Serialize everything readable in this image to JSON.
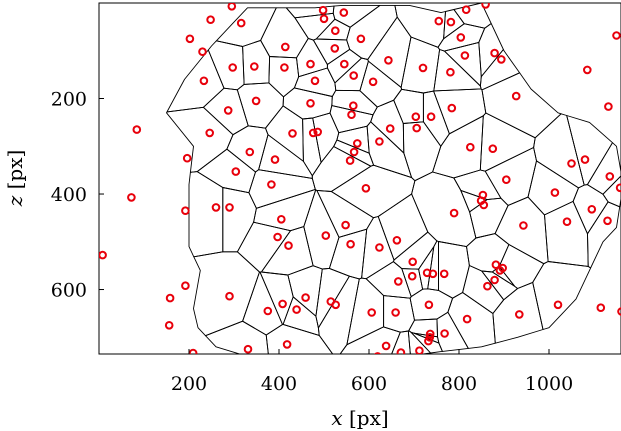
{
  "chart_data": {
    "type": "scatter",
    "xlabel": {
      "var": "x",
      "unit": "[px]"
    },
    "ylabel": {
      "var": "z",
      "unit": "[px]"
    },
    "xlim": [
      0,
      1160
    ],
    "ylim": [
      0,
      735
    ],
    "y_inverted": true,
    "xticks": [
      200,
      400,
      600,
      800,
      1000
    ],
    "yticks": [
      200,
      400,
      600
    ],
    "grid": false,
    "marker_color": "#e8000b",
    "edge_color": "#000000",
    "points": [
      {
        "x": 295,
        "y": 7
      },
      {
        "x": 498,
        "y": 15
      },
      {
        "x": 544,
        "y": 20
      },
      {
        "x": 816,
        "y": 14
      },
      {
        "x": 859,
        "y": 3
      },
      {
        "x": 248,
        "y": 35
      },
      {
        "x": 316,
        "y": 42
      },
      {
        "x": 500,
        "y": 33
      },
      {
        "x": 755,
        "y": 38
      },
      {
        "x": 782,
        "y": 40
      },
      {
        "x": 1150,
        "y": 68
      },
      {
        "x": 202,
        "y": 75
      },
      {
        "x": 525,
        "y": 58
      },
      {
        "x": 582,
        "y": 75
      },
      {
        "x": 804,
        "y": 72
      },
      {
        "x": 414,
        "y": 92
      },
      {
        "x": 230,
        "y": 102
      },
      {
        "x": 524,
        "y": 95
      },
      {
        "x": 813,
        "y": 110
      },
      {
        "x": 879,
        "y": 105
      },
      {
        "x": 894,
        "y": 118
      },
      {
        "x": 1085,
        "y": 140
      },
      {
        "x": 297,
        "y": 135
      },
      {
        "x": 345,
        "y": 133
      },
      {
        "x": 412,
        "y": 135
      },
      {
        "x": 470,
        "y": 128
      },
      {
        "x": 545,
        "y": 128
      },
      {
        "x": 643,
        "y": 120
      },
      {
        "x": 720,
        "y": 136
      },
      {
        "x": 781,
        "y": 145
      },
      {
        "x": 566,
        "y": 152
      },
      {
        "x": 233,
        "y": 163
      },
      {
        "x": 480,
        "y": 163
      },
      {
        "x": 609,
        "y": 165
      },
      {
        "x": 927,
        "y": 195
      },
      {
        "x": 349,
        "y": 205
      },
      {
        "x": 470,
        "y": 210
      },
      {
        "x": 565,
        "y": 215
      },
      {
        "x": 784,
        "y": 220
      },
      {
        "x": 1132,
        "y": 217
      },
      {
        "x": 287,
        "y": 225
      },
      {
        "x": 561,
        "y": 234
      },
      {
        "x": 704,
        "y": 238
      },
      {
        "x": 738,
        "y": 238
      },
      {
        "x": 84,
        "y": 265
      },
      {
        "x": 246,
        "y": 272
      },
      {
        "x": 430,
        "y": 273
      },
      {
        "x": 476,
        "y": 272
      },
      {
        "x": 486,
        "y": 270
      },
      {
        "x": 647,
        "y": 263
      },
      {
        "x": 706,
        "y": 262
      },
      {
        "x": 574,
        "y": 294
      },
      {
        "x": 623,
        "y": 290
      },
      {
        "x": 825,
        "y": 302
      },
      {
        "x": 875,
        "y": 305
      },
      {
        "x": 335,
        "y": 312
      },
      {
        "x": 567,
        "y": 312
      },
      {
        "x": 196,
        "y": 325
      },
      {
        "x": 391,
        "y": 328
      },
      {
        "x": 558,
        "y": 330
      },
      {
        "x": 1050,
        "y": 336
      },
      {
        "x": 1080,
        "y": 328
      },
      {
        "x": 304,
        "y": 353
      },
      {
        "x": 1135,
        "y": 363
      },
      {
        "x": 905,
        "y": 370
      },
      {
        "x": 383,
        "y": 380
      },
      {
        "x": 593,
        "y": 388
      },
      {
        "x": 72,
        "y": 407
      },
      {
        "x": 853,
        "y": 402
      },
      {
        "x": 1013,
        "y": 397
      },
      {
        "x": 1158,
        "y": 387
      },
      {
        "x": 849,
        "y": 414
      },
      {
        "x": 855,
        "y": 423
      },
      {
        "x": 260,
        "y": 428
      },
      {
        "x": 290,
        "y": 428
      },
      {
        "x": 192,
        "y": 435
      },
      {
        "x": 789,
        "y": 440
      },
      {
        "x": 1095,
        "y": 432
      },
      {
        "x": 405,
        "y": 453
      },
      {
        "x": 1040,
        "y": 458
      },
      {
        "x": 1130,
        "y": 456
      },
      {
        "x": 943,
        "y": 466
      },
      {
        "x": 548,
        "y": 465
      },
      {
        "x": 504,
        "y": 487
      },
      {
        "x": 397,
        "y": 490
      },
      {
        "x": 421,
        "y": 508
      },
      {
        "x": 559,
        "y": 505
      },
      {
        "x": 662,
        "y": 497
      },
      {
        "x": 623,
        "y": 512
      },
      {
        "x": 8,
        "y": 528
      },
      {
        "x": 882,
        "y": 548
      },
      {
        "x": 891,
        "y": 560
      },
      {
        "x": 897,
        "y": 555
      },
      {
        "x": 697,
        "y": 542
      },
      {
        "x": 696,
        "y": 572
      },
      {
        "x": 729,
        "y": 565
      },
      {
        "x": 767,
        "y": 567
      },
      {
        "x": 742,
        "y": 567
      },
      {
        "x": 863,
        "y": 593
      },
      {
        "x": 879,
        "y": 580
      },
      {
        "x": 665,
        "y": 583
      },
      {
        "x": 192,
        "y": 592
      },
      {
        "x": 158,
        "y": 618
      },
      {
        "x": 290,
        "y": 614
      },
      {
        "x": 459,
        "y": 617
      },
      {
        "x": 515,
        "y": 625
      },
      {
        "x": 526,
        "y": 632
      },
      {
        "x": 408,
        "y": 630
      },
      {
        "x": 439,
        "y": 642
      },
      {
        "x": 375,
        "y": 645
      },
      {
        "x": 606,
        "y": 648
      },
      {
        "x": 659,
        "y": 648
      },
      {
        "x": 733,
        "y": 632
      },
      {
        "x": 1020,
        "y": 632
      },
      {
        "x": 1115,
        "y": 638
      },
      {
        "x": 1161,
        "y": 646
      },
      {
        "x": 934,
        "y": 652
      },
      {
        "x": 818,
        "y": 662
      },
      {
        "x": 156,
        "y": 675
      },
      {
        "x": 736,
        "y": 693
      },
      {
        "x": 768,
        "y": 692
      },
      {
        "x": 732,
        "y": 708
      },
      {
        "x": 735,
        "y": 700
      },
      {
        "x": 418,
        "y": 715
      },
      {
        "x": 638,
        "y": 718
      },
      {
        "x": 209,
        "y": 733
      },
      {
        "x": 331,
        "y": 725
      },
      {
        "x": 619,
        "y": 740
      },
      {
        "x": 671,
        "y": 732
      },
      {
        "x": 712,
        "y": 728
      }
    ]
  }
}
